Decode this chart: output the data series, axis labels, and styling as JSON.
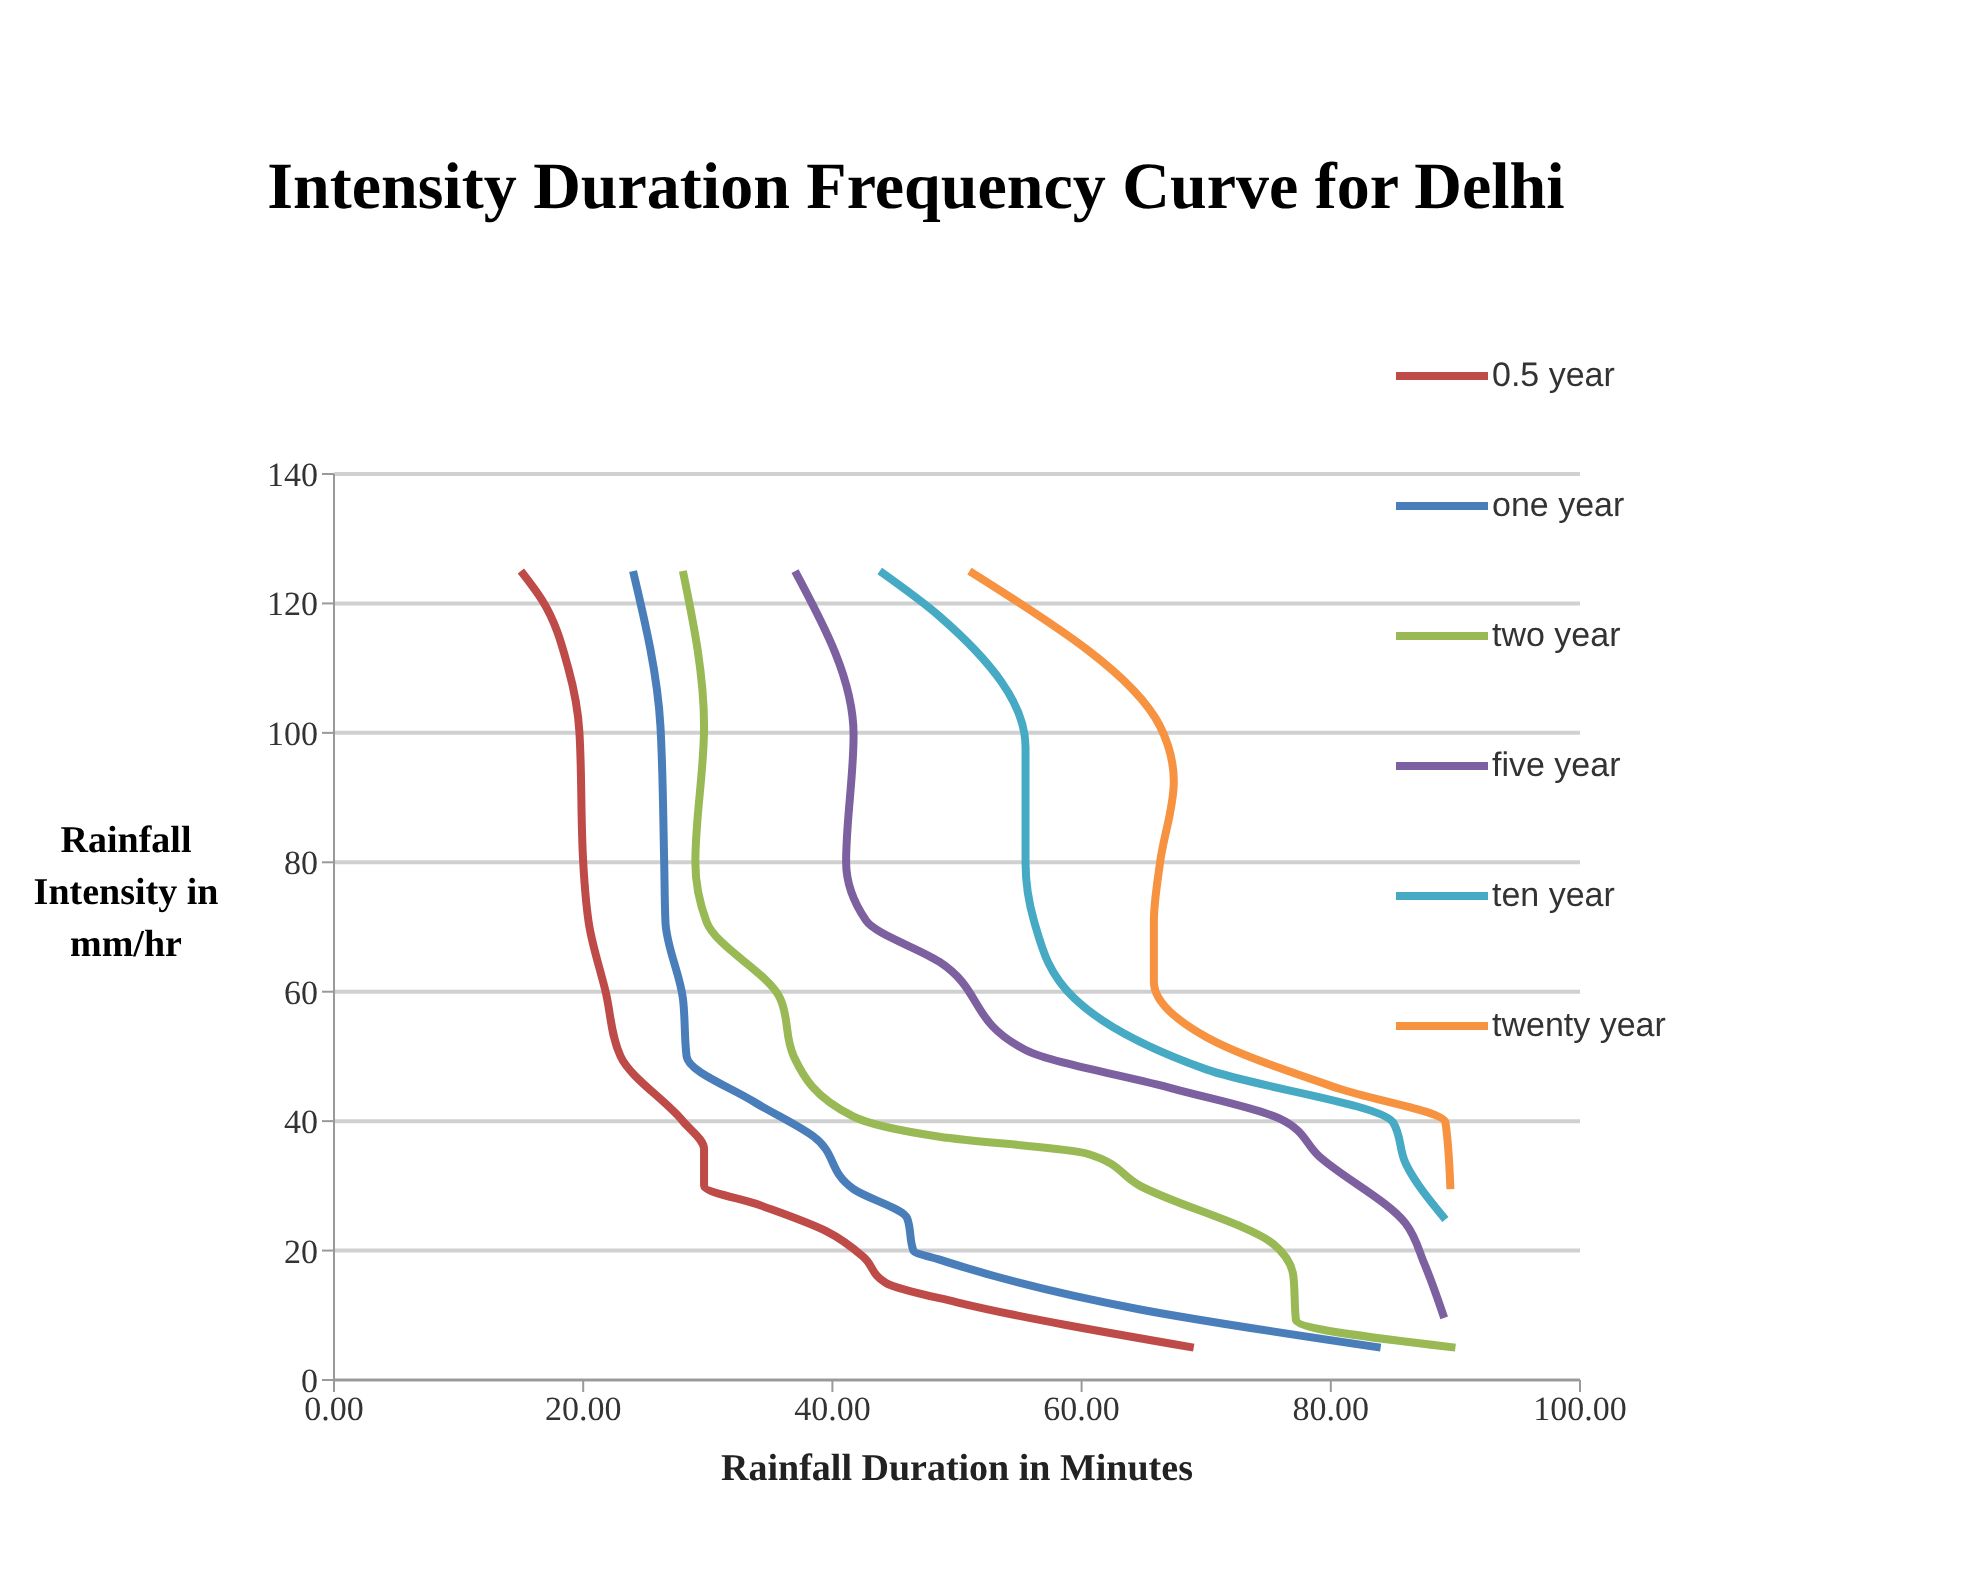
{
  "chart_data": {
    "type": "line",
    "title": "Intensity Duration Frequency Curve for Delhi",
    "xlabel": "Rainfall Duration in Minutes",
    "ylabel": "Rainfall Intensity in mm/hr",
    "xlim": [
      0,
      100
    ],
    "xticks": [
      {
        "value": 0,
        "label": "0.00"
      },
      {
        "value": 20,
        "label": "20.00"
      },
      {
        "value": 40,
        "label": "40.00"
      },
      {
        "value": 60,
        "label": "60.00"
      },
      {
        "value": 80,
        "label": "80.00"
      },
      {
        "value": 100,
        "label": "100.00"
      }
    ],
    "ylim": [
      0,
      140
    ],
    "yticks": [
      0,
      20,
      40,
      60,
      80,
      100,
      120,
      140
    ],
    "grid": "y",
    "legend": "right",
    "marker": "none",
    "line_style": "solid",
    "series": [
      {
        "name": "0.5 year",
        "color": "#be4b48",
        "x": [
          15,
          16.7,
          18.8,
          19.7,
          20,
          20.5,
          21.8,
          23,
          28,
          29.7,
          29.7,
          34.2,
          39.5,
          42.5,
          44.3,
          50,
          69
        ],
        "values": [
          125,
          120.5,
          110,
          100,
          80,
          70,
          60,
          50,
          40,
          35.7,
          30,
          27,
          23,
          19,
          15,
          12,
          5
        ]
      },
      {
        "name": "one year",
        "color": "#4a7ebb",
        "x": [
          24,
          26.2,
          26.5,
          26.6,
          28,
          28.3,
          33.7,
          38.5,
          41.7,
          46,
          46.5,
          48.6,
          64.7,
          84
        ],
        "values": [
          125,
          101,
          80,
          70.8,
          59,
          50,
          43,
          37.6,
          29.5,
          25,
          20,
          18.6,
          10.9,
          5
        ]
      },
      {
        "name": "two year",
        "color": "#98b954",
        "x": [
          28,
          29.7,
          29,
          29.9,
          35.8,
          36.9,
          41.7,
          48.6,
          60.4,
          64.7,
          75.4,
          77,
          77.2,
          90
        ],
        "values": [
          125,
          101,
          80,
          70.8,
          59,
          50,
          40.7,
          37.6,
          35,
          30,
          21,
          16,
          9.3,
          5
        ]
      },
      {
        "name": "five year",
        "color": "#7d60a0",
        "x": [
          37,
          41.7,
          41.1,
          42.7,
          48.6,
          55.5,
          67.4,
          75.9,
          79.1,
          86,
          87.5,
          89.1
        ],
        "values": [
          125,
          99.7,
          80,
          71,
          64.6,
          51,
          45,
          40.4,
          34.5,
          24.2,
          18,
          9.6
        ]
      },
      {
        "name": "ten year",
        "color": "#46aac5",
        "x": [
          43.8,
          48.6,
          55.5,
          55.5,
          56.2,
          59.4,
          70,
          85,
          86,
          89.2
        ],
        "values": [
          125,
          118,
          97.8,
          80,
          70.8,
          59,
          48,
          39.8,
          33.5,
          24.8
        ]
      },
      {
        "name": "twenty year",
        "color": "#f69240",
        "x": [
          51,
          66.3,
          67.4,
          66.3,
          65.8,
          65.8,
          70,
          80.7,
          89.2,
          89.6
        ],
        "values": [
          125,
          101,
          92.5,
          80,
          70.8,
          61.5,
          53,
          45,
          39.8,
          29.5
        ]
      }
    ]
  }
}
